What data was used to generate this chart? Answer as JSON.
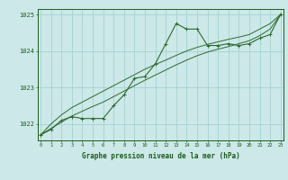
{
  "x": [
    0,
    1,
    2,
    3,
    4,
    5,
    6,
    7,
    8,
    9,
    10,
    11,
    12,
    13,
    14,
    15,
    16,
    17,
    18,
    19,
    20,
    21,
    22,
    23
  ],
  "y_main": [
    1021.7,
    1021.85,
    1022.1,
    1022.2,
    1022.15,
    1022.15,
    1022.15,
    1022.5,
    1022.8,
    1023.25,
    1023.3,
    1023.65,
    1024.2,
    1024.75,
    1024.6,
    1024.6,
    1024.15,
    1024.15,
    1024.2,
    1024.15,
    1024.2,
    1024.35,
    1024.45,
    1025.0
  ],
  "y_trend1": [
    1021.7,
    1022.0,
    1022.25,
    1022.45,
    1022.6,
    1022.75,
    1022.9,
    1023.05,
    1023.2,
    1023.35,
    1023.5,
    1023.63,
    1023.75,
    1023.88,
    1024.0,
    1024.1,
    1024.18,
    1024.25,
    1024.32,
    1024.38,
    1024.45,
    1024.6,
    1024.75,
    1025.0
  ],
  "y_trend2": [
    1021.7,
    1021.88,
    1022.05,
    1022.22,
    1022.35,
    1022.48,
    1022.6,
    1022.75,
    1022.9,
    1023.05,
    1023.2,
    1023.34,
    1023.48,
    1023.62,
    1023.75,
    1023.87,
    1023.97,
    1024.05,
    1024.12,
    1024.2,
    1024.28,
    1024.42,
    1024.6,
    1025.0
  ],
  "line_color": "#2d6a2d",
  "bg_color": "#cce8e8",
  "grid_color": "#9ecece",
  "text_color": "#1a5c1a",
  "ylim_min": 1021.55,
  "ylim_max": 1025.15,
  "yticks": [
    1022,
    1023,
    1024,
    1025
  ],
  "xlabel": "Graphe pression niveau de la mer (hPa)"
}
